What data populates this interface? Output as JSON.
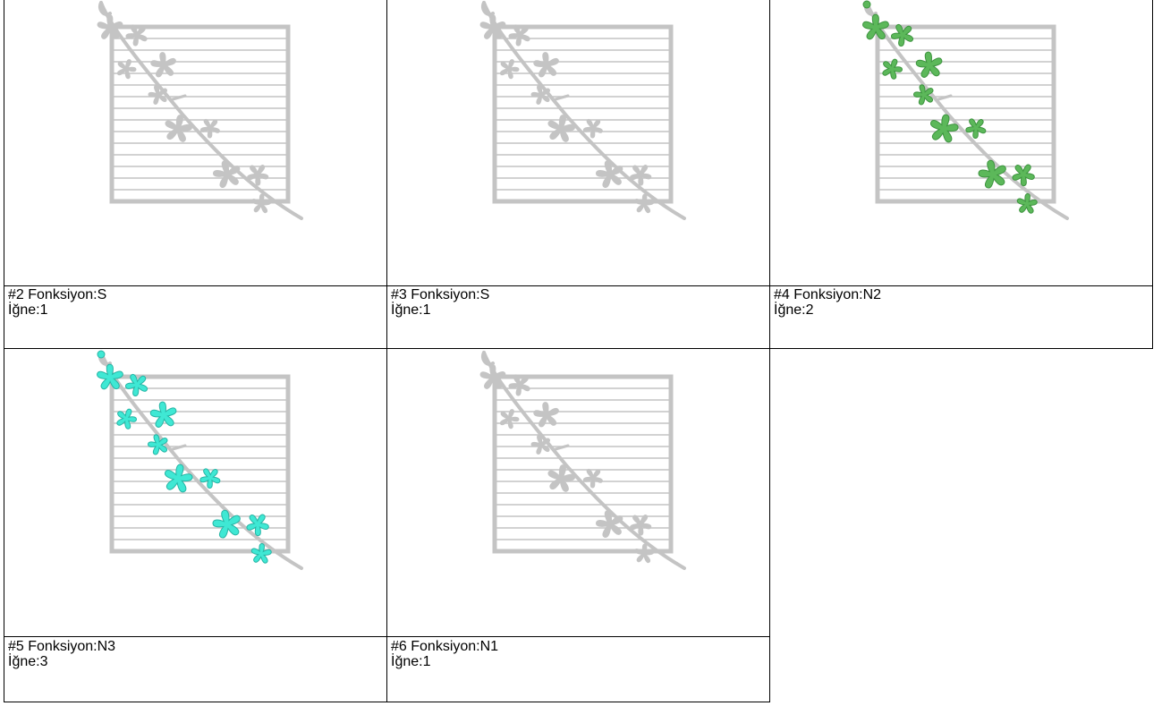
{
  "colors": {
    "grey": "#c4c4c4",
    "green": "#5cb85a",
    "green_dark": "#3e9440",
    "cyan": "#3fe8d4",
    "cyan_dark": "#27b5a5"
  },
  "cells": [
    {
      "title": "#2 Fonksiyon:S",
      "needle": "İğne:1",
      "highlight": "none"
    },
    {
      "title": "#3 Fonksiyon:S",
      "needle": "İğne:1",
      "highlight": "none"
    },
    {
      "title": "#4 Fonksiyon:N2",
      "needle": "İğne:2",
      "highlight": "green"
    },
    {
      "title": "#5 Fonksiyon:N3",
      "needle": "İğne:3",
      "highlight": "cyan"
    },
    {
      "title": "#6 Fonksiyon:N1",
      "needle": "İğne:1",
      "highlight": "none"
    }
  ]
}
